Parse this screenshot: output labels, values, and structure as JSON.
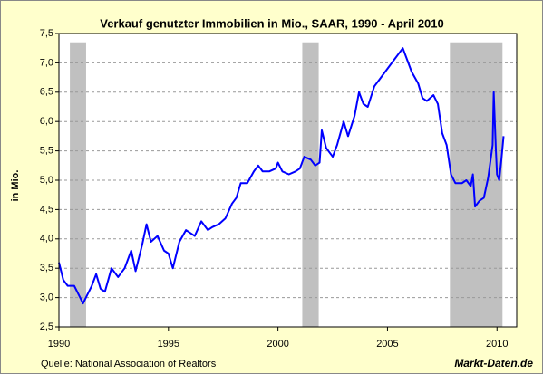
{
  "chart_data": {
    "type": "line",
    "title": "Verkauf genutzter Immobilien in Mio., SAAR, 1990 - April 2010",
    "y_label": "in Mio.",
    "source": "Quelle: National Association of Realtors",
    "brand": "Markt-Daten.de",
    "x": [
      1990.0,
      1990.2,
      1990.4,
      1990.7,
      1990.9,
      1991.1,
      1991.3,
      1991.5,
      1991.7,
      1991.9,
      1992.1,
      1992.4,
      1992.7,
      1993.0,
      1993.3,
      1993.5,
      1993.8,
      1994.0,
      1994.2,
      1994.5,
      1994.8,
      1995.0,
      1995.2,
      1995.5,
      1995.8,
      1996.2,
      1996.5,
      1996.8,
      1997.0,
      1997.3,
      1997.6,
      1997.9,
      1998.1,
      1998.3,
      1998.6,
      1998.9,
      1999.1,
      1999.3,
      1999.6,
      1999.9,
      2000.0,
      2000.2,
      2000.5,
      2000.8,
      2001.0,
      2001.2,
      2001.5,
      2001.7,
      2001.9,
      2002.0,
      2002.2,
      2002.5,
      2002.7,
      2003.0,
      2003.2,
      2003.5,
      2003.7,
      2003.9,
      2004.1,
      2004.4,
      2004.6,
      2004.9,
      2005.1,
      2005.3,
      2005.5,
      2005.7,
      2005.9,
      2006.1,
      2006.4,
      2006.6,
      2006.8,
      2007.1,
      2007.3,
      2007.5,
      2007.7,
      2007.9,
      2008.1,
      2008.4,
      2008.6,
      2008.8,
      2008.9,
      2009.0,
      2009.2,
      2009.4,
      2009.6,
      2009.8,
      2009.85,
      2009.95,
      2010.0,
      2010.1,
      2010.2,
      2010.3
    ],
    "series": [
      {
        "color": "#0000ff",
        "values": [
          3.6,
          3.3,
          3.2,
          3.2,
          3.05,
          2.9,
          3.05,
          3.2,
          3.4,
          3.15,
          3.1,
          3.5,
          3.35,
          3.5,
          3.8,
          3.45,
          3.9,
          4.25,
          3.95,
          4.05,
          3.8,
          3.75,
          3.5,
          3.95,
          4.15,
          4.05,
          4.3,
          4.15,
          4.2,
          4.25,
          4.35,
          4.6,
          4.7,
          4.95,
          4.95,
          5.15,
          5.25,
          5.15,
          5.15,
          5.2,
          5.3,
          5.15,
          5.1,
          5.15,
          5.2,
          5.4,
          5.35,
          5.25,
          5.3,
          5.85,
          5.55,
          5.4,
          5.6,
          6.0,
          5.75,
          6.1,
          6.5,
          6.3,
          6.25,
          6.6,
          6.7,
          6.85,
          6.95,
          7.05,
          7.15,
          7.25,
          7.05,
          6.85,
          6.65,
          6.4,
          6.35,
          6.45,
          6.3,
          5.8,
          5.6,
          5.1,
          4.95,
          4.95,
          5.0,
          4.9,
          5.1,
          4.55,
          4.65,
          4.7,
          5.05,
          5.6,
          6.5,
          5.5,
          5.1,
          5.0,
          5.35,
          5.75
        ]
      }
    ],
    "shading": [
      [
        1990.5,
        1991.24
      ],
      [
        2001.11,
        2001.86
      ],
      [
        2007.85,
        2010.25
      ]
    ],
    "shading_top": 7.35,
    "shading_color": "#c0c0c0",
    "xlim": [
      1990,
      2010.9
    ],
    "xticks": [
      1990,
      1995,
      2000,
      2005,
      2010
    ],
    "ylim": [
      2.5,
      7.5
    ],
    "yticks": [
      {
        "value": 2.5,
        "label": "2,5"
      },
      {
        "value": 3.0,
        "label": "3,0"
      },
      {
        "value": 3.5,
        "label": "3,5"
      },
      {
        "value": 4.0,
        "label": "4,0"
      },
      {
        "value": 4.5,
        "label": "4,5"
      },
      {
        "value": 5.0,
        "label": "5,0"
      },
      {
        "value": 5.5,
        "label": "5,5"
      },
      {
        "value": 6.0,
        "label": "6,0"
      },
      {
        "value": 6.5,
        "label": "6,5"
      },
      {
        "value": 7.0,
        "label": "7,0"
      },
      {
        "value": 7.5,
        "label": "7,5"
      }
    ],
    "grid": true
  }
}
